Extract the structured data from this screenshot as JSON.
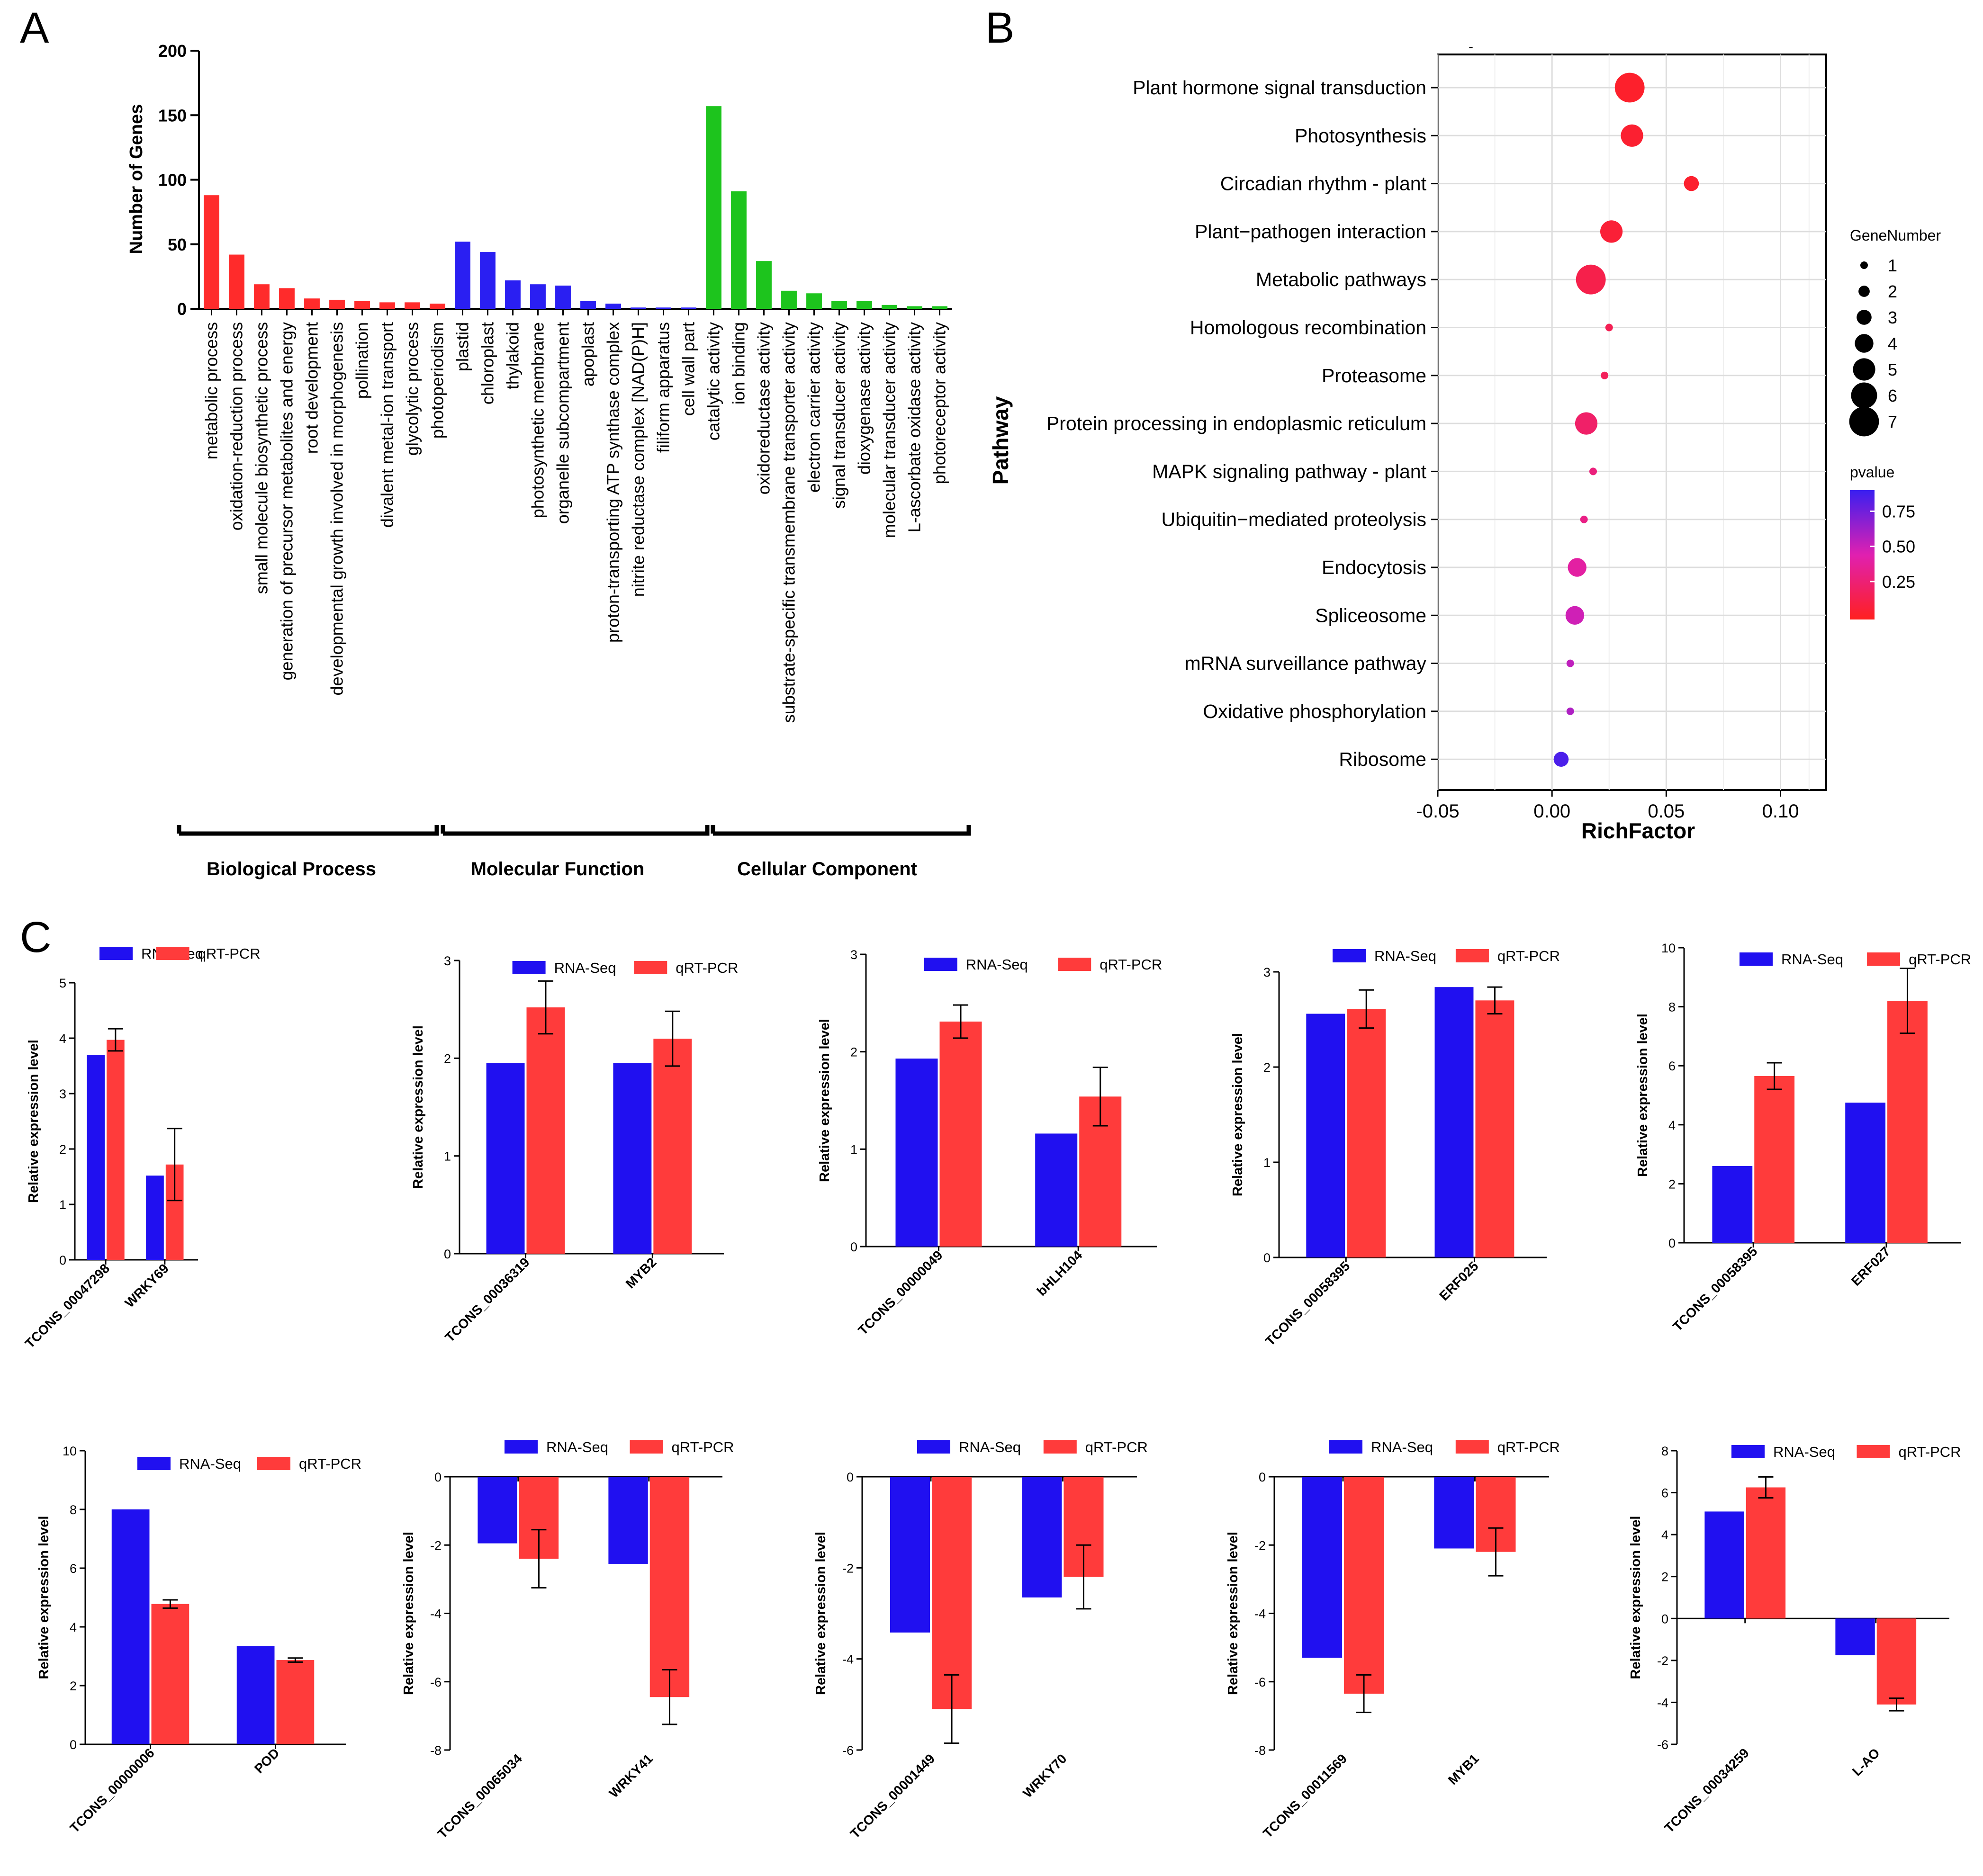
{
  "panel_letters": [
    "A",
    "B",
    "C"
  ],
  "colors": {
    "bp": "#ff2b2b",
    "mf": "#2a1ff2",
    "cc": "#1dc41d",
    "rna": "#2010f0",
    "qpcr": "#ff3b3b",
    "p_low": "#ff2020",
    "p_mid": "#e020b0",
    "p_high": "#3a1ff0"
  },
  "chart_data": [
    {
      "type": "bar",
      "panel": "A",
      "ylabel": "Number of Genes",
      "ylim": [
        0,
        200
      ],
      "yticks": [
        0,
        50,
        100,
        150,
        200
      ],
      "categories": [
        "metabolic process",
        "oxidation-reduction process",
        "small molecule biosynthetic process",
        "generation of precursor metabolites and energy",
        "root development",
        "developmental growth involved in morphogenesis",
        "pollination",
        "divalent metal-ion transport",
        "glycolytic process",
        "photoperiodism",
        "plastid",
        "chloroplast",
        "thylakoid",
        "photosynthetic membrane",
        "organelle subcompartment",
        "apoplast",
        "proton-transporting ATP synthase complex",
        "nitrite reductase complex [NAD(P)H]",
        "filiform apparatus",
        "cell wall part",
        "catalytic activity",
        "ion binding",
        "oxidoreductase activity",
        "substrate-specific transmembrane transporter activity",
        "electron carrier activity",
        "signal transducer activity",
        "dioxygenase activity",
        "molecular transducer activity",
        "L-ascorbate oxidase activity",
        "photoreceptor activity"
      ],
      "values": [
        88,
        42,
        19,
        16,
        8,
        7,
        6,
        5,
        5,
        4,
        52,
        44,
        22,
        19,
        18,
        6,
        4,
        1,
        1,
        1,
        157,
        91,
        37,
        14,
        12,
        6,
        6,
        3,
        2,
        2
      ],
      "groups": [
        "bp",
        "bp",
        "bp",
        "bp",
        "bp",
        "bp",
        "bp",
        "bp",
        "bp",
        "bp",
        "mf",
        "mf",
        "mf",
        "mf",
        "mf",
        "mf",
        "mf",
        "mf",
        "mf",
        "mf",
        "cc",
        "cc",
        "cc",
        "cc",
        "cc",
        "cc",
        "cc",
        "cc",
        "cc",
        "cc"
      ],
      "group_labels": [
        "Biological Process",
        "Molecular Function",
        "Cellular Component"
      ]
    },
    {
      "type": "scatter",
      "panel": "B",
      "title": "-",
      "xlabel": "RichFactor",
      "ylabel": "Pathway",
      "xlim": [
        -0.05,
        0.12
      ],
      "xticks": [
        -0.05,
        0.0,
        0.05,
        0.1
      ],
      "xtick_labels": [
        "-0.05",
        "0.00",
        "0.05",
        "0.10"
      ],
      "pathways": [
        "Plant hormone signal transduction",
        "Photosynthesis",
        "Circadian rhythm - plant",
        "Plant−pathogen interaction",
        "Metabolic pathways",
        "Homologous recombination",
        "Proteasome",
        "Protein processing in endoplasmic reticulum",
        "MAPK signaling pathway - plant",
        "Ubiquitin−mediated proteolysis",
        "Endocytosis",
        "Spliceosome",
        "mRNA surveillance pathway",
        "Oxidative phosphorylation",
        "Ribosome"
      ],
      "richfactor": [
        0.034,
        0.035,
        0.061,
        0.026,
        0.017,
        0.025,
        0.023,
        0.015,
        0.018,
        0.014,
        0.011,
        0.01,
        0.008,
        0.008,
        0.004
      ],
      "gene_number": [
        7,
        5,
        3,
        5,
        7,
        1,
        1,
        5,
        1,
        1,
        4,
        4,
        1,
        1,
        3
      ],
      "pvalue": [
        0.04,
        0.06,
        0.05,
        0.08,
        0.15,
        0.18,
        0.2,
        0.25,
        0.32,
        0.35,
        0.45,
        0.55,
        0.6,
        0.65,
        0.95
      ],
      "size_legend_title": "GeneNumber",
      "size_legend": [
        1,
        2,
        3,
        4,
        5,
        6,
        7
      ],
      "color_legend_title": "pvalue",
      "color_legend_ticks": [
        "0.75",
        "0.50",
        "0.25"
      ],
      "color_legend_values": [
        0.75,
        0.5,
        0.25
      ]
    },
    {
      "type": "bar",
      "panel": "C",
      "ylabel": "Relative expression level",
      "legend": [
        "RNA-Seq",
        "qRT-PCR"
      ],
      "categories": [
        "TCONS_00047298",
        "WRKY69"
      ],
      "series": [
        {
          "name": "RNA-Seq",
          "values": [
            3.7,
            1.52
          ]
        },
        {
          "name": "qRT-PCR",
          "values": [
            3.97,
            1.72
          ],
          "errors": [
            0.2,
            0.65
          ]
        }
      ],
      "ylim": [
        0,
        5
      ],
      "yticks": [
        0,
        1,
        2,
        3,
        4,
        5
      ]
    },
    {
      "type": "bar",
      "panel": "C",
      "ylabel": "Relative expression level",
      "legend": [
        "RNA-Seq",
        "qRT-PCR"
      ],
      "categories": [
        "TCONS_00036319",
        "MYB2"
      ],
      "series": [
        {
          "name": "RNA-Seq",
          "values": [
            1.95,
            1.95
          ]
        },
        {
          "name": "qRT-PCR",
          "values": [
            2.52,
            2.2
          ],
          "errors": [
            0.27,
            0.28
          ]
        }
      ],
      "ylim": [
        0,
        3
      ],
      "yticks": [
        0,
        1,
        2,
        3
      ]
    },
    {
      "type": "bar",
      "panel": "C",
      "ylabel": "Relative expression level",
      "legend": [
        "RNA-Seq",
        "qRT-PCR"
      ],
      "categories": [
        "TCONS_00000049",
        "bHLH104"
      ],
      "series": [
        {
          "name": "RNA-Seq",
          "values": [
            1.93,
            1.16
          ]
        },
        {
          "name": "qRT-PCR",
          "values": [
            2.31,
            1.54
          ],
          "errors": [
            0.17,
            0.3
          ]
        }
      ],
      "ylim": [
        0,
        3
      ],
      "yticks": [
        0,
        1,
        2,
        3
      ]
    },
    {
      "type": "bar",
      "panel": "C",
      "ylabel": "Relative expression level",
      "legend": [
        "RNA-Seq",
        "qRT-PCR"
      ],
      "categories": [
        "TCONS_00058395",
        "ERF025"
      ],
      "series": [
        {
          "name": "RNA-Seq",
          "values": [
            2.56,
            2.84
          ]
        },
        {
          "name": "qRT-PCR",
          "values": [
            2.61,
            2.7
          ],
          "errors": [
            0.2,
            0.14
          ]
        }
      ],
      "ylim": [
        0,
        3
      ],
      "yticks": [
        0,
        1,
        2,
        3
      ]
    },
    {
      "type": "bar",
      "panel": "C",
      "ylabel": "Relative expression level",
      "legend": [
        "RNA-Seq",
        "qRT-PCR"
      ],
      "categories": [
        "TCONS_00058395",
        "ERF027"
      ],
      "series": [
        {
          "name": "RNA-Seq",
          "values": [
            2.6,
            4.75
          ]
        },
        {
          "name": "qRT-PCR",
          "values": [
            5.65,
            8.2
          ],
          "errors": [
            0.45,
            1.1
          ]
        }
      ],
      "ylim": [
        0,
        10
      ],
      "yticks": [
        0,
        2,
        4,
        6,
        8,
        10
      ]
    },
    {
      "type": "bar",
      "panel": "C",
      "ylabel": "Relative expression level",
      "legend": [
        "RNA-Seq",
        "qRT-PCR"
      ],
      "categories": [
        "TCONS_00000006",
        "POD"
      ],
      "series": [
        {
          "name": "RNA-Seq",
          "values": [
            8.0,
            3.35
          ]
        },
        {
          "name": "qRT-PCR",
          "values": [
            4.78,
            2.87
          ],
          "errors": [
            0.14,
            0.07
          ]
        }
      ],
      "ylim": [
        0,
        10
      ],
      "yticks": [
        0,
        2,
        4,
        6,
        8,
        10
      ]
    },
    {
      "type": "bar",
      "panel": "C",
      "ylabel": "Relative expression level",
      "legend": [
        "RNA-Seq",
        "qRT-PCR"
      ],
      "categories": [
        "TCONS_00065034",
        "WRKY41"
      ],
      "series": [
        {
          "name": "RNA-Seq",
          "values": [
            -1.95,
            -2.55
          ]
        },
        {
          "name": "qRT-PCR",
          "values": [
            -2.4,
            -6.45
          ],
          "errors": [
            0.85,
            0.8
          ]
        }
      ],
      "ylim": [
        -8,
        0
      ],
      "yticks": [
        -8,
        -6,
        -4,
        -2,
        0
      ]
    },
    {
      "type": "bar",
      "panel": "C",
      "ylabel": "Relative expression level",
      "legend": [
        "RNA-Seq",
        "qRT-PCR"
      ],
      "categories": [
        "TCONS_00001449",
        "WRKY70"
      ],
      "series": [
        {
          "name": "RNA-Seq",
          "values": [
            -3.42,
            -2.65
          ]
        },
        {
          "name": "qRT-PCR",
          "values": [
            -5.1,
            -2.2
          ],
          "errors": [
            0.75,
            0.7
          ]
        }
      ],
      "ylim": [
        -6,
        0
      ],
      "yticks": [
        -6,
        -4,
        -2,
        0
      ]
    },
    {
      "type": "bar",
      "panel": "C",
      "ylabel": "Relative expression level",
      "legend": [
        "RNA-Seq",
        "qRT-PCR"
      ],
      "categories": [
        "TCONS_00011569",
        "MYB1"
      ],
      "series": [
        {
          "name": "RNA-Seq",
          "values": [
            -5.3,
            -2.1
          ]
        },
        {
          "name": "qRT-PCR",
          "values": [
            -6.35,
            -2.2
          ],
          "errors": [
            0.55,
            0.7
          ]
        }
      ],
      "ylim": [
        -8,
        0
      ],
      "yticks": [
        -8,
        -6,
        -4,
        -2,
        0
      ]
    },
    {
      "type": "bar",
      "panel": "C",
      "ylabel": "Relative expression level",
      "legend": [
        "RNA-Seq",
        "qRT-PCR"
      ],
      "categories": [
        "TCONS_00034259",
        "L-AO"
      ],
      "series": [
        {
          "name": "RNA-Seq",
          "values": [
            5.1,
            -1.75
          ]
        },
        {
          "name": "qRT-PCR",
          "values": [
            6.25,
            -4.1
          ],
          "errors": [
            0.5,
            0.3
          ]
        }
      ],
      "ylim": [
        -6,
        8
      ],
      "yticks": [
        -6,
        -4,
        -2,
        0,
        2,
        4,
        6,
        8
      ]
    }
  ]
}
